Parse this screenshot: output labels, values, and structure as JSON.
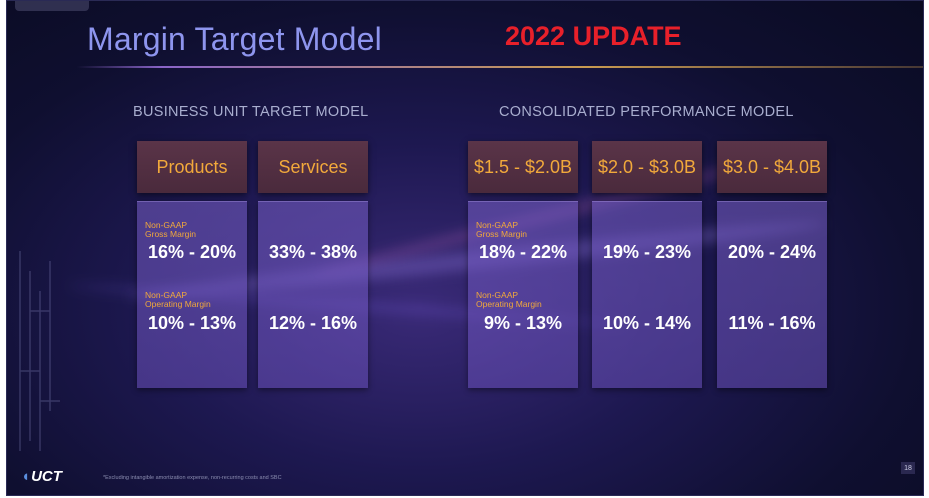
{
  "slide": {
    "title": "Margin Target Model",
    "update_badge": "2022 UPDATE",
    "page_number": "18",
    "footnote": "*Excluding intangible amortization expense, non-recurring costs and SBC",
    "logo_text": "UCT"
  },
  "sections": {
    "business_unit": "BUSINESS UNIT TARGET MODEL",
    "consolidated": "CONSOLIDATED PERFORMANCE MODEL"
  },
  "labels": {
    "gross_line1": "Non-GAAP",
    "gross_line2": "Gross Margin",
    "operating_line1": "Non-GAAP",
    "operating_line2": "Operating Margin"
  },
  "columns": [
    {
      "header": "Products",
      "gross": "16% - 20%",
      "operating": "10% - 13%"
    },
    {
      "header": "Services",
      "gross": "33% - 38%",
      "operating": "12% - 16%"
    },
    {
      "header": "$1.5 - $2.0B",
      "gross": "18% - 22%",
      "operating": "9% - 13%"
    },
    {
      "header": "$2.0 - $3.0B",
      "gross": "19% - 23%",
      "operating": "10% - 14%"
    },
    {
      "header": "$3.0 - $4.0B",
      "gross": "20% - 24%",
      "operating": "11% - 16%"
    }
  ],
  "colors": {
    "title": "#8e95ee",
    "update": "#e8202a",
    "header_text": "#f2a93b",
    "label_text": "#f2a93b",
    "value_text": "#ffffff"
  }
}
